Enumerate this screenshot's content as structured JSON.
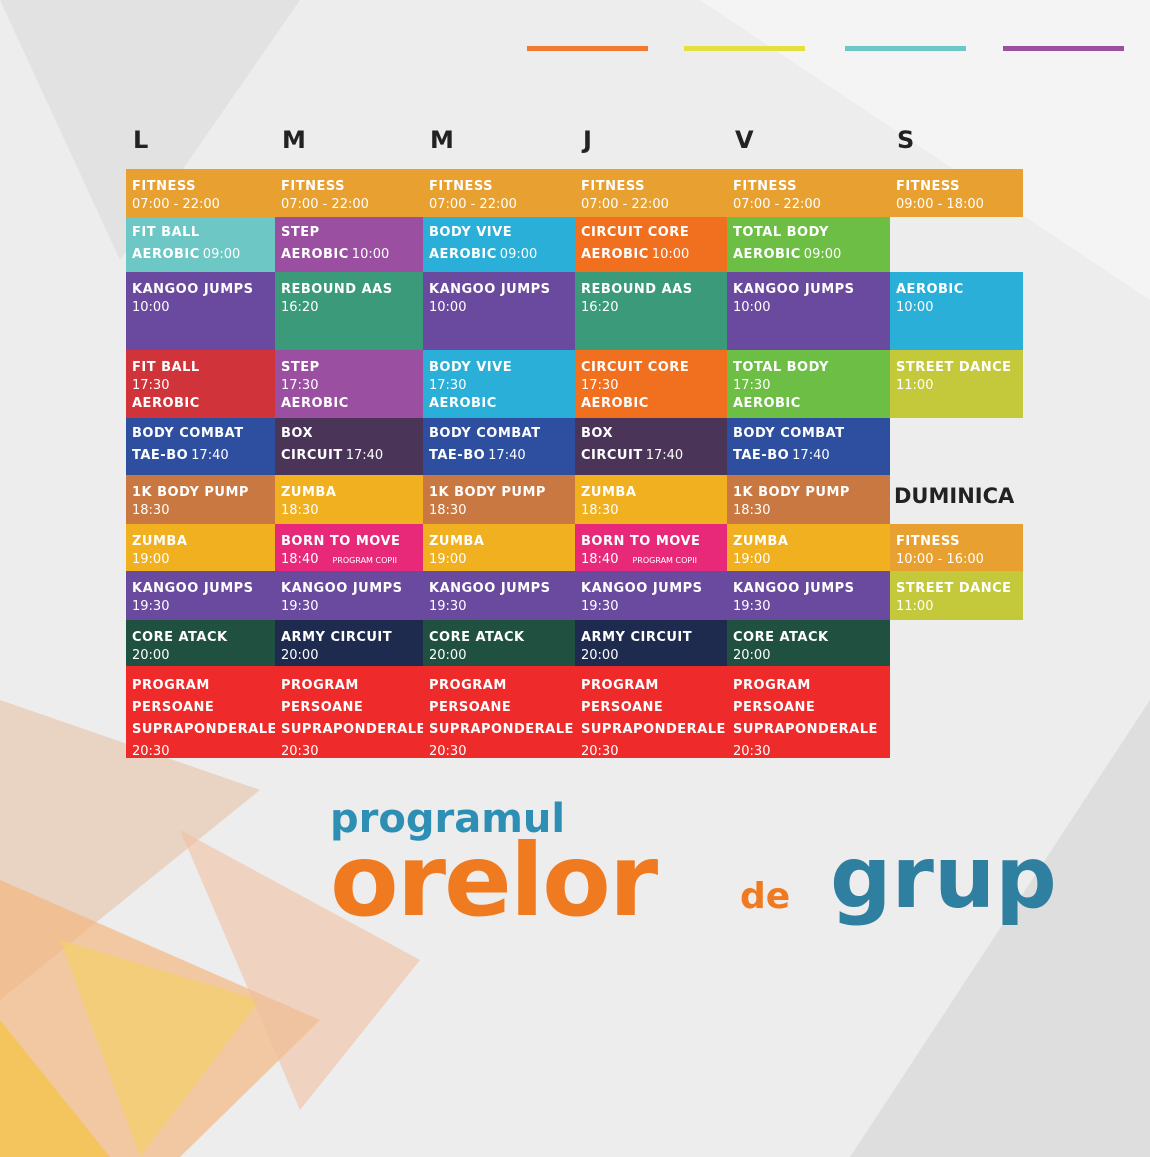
{
  "color_bars": [
    "#f07a30",
    "#e3e040",
    "#6cc7c5",
    "#9b4fa0"
  ],
  "days": [
    "L",
    "M",
    "M",
    "J",
    "V",
    "S"
  ],
  "sunday_label": "DUMINICA",
  "schedule": {
    "rows": [
      [
        {
          "color": "#e8a030",
          "lines": [
            {
              "b": "FITNESS"
            },
            {
              "n": "07:00 - 22:00"
            }
          ]
        },
        {
          "color": "#e8a030",
          "lines": [
            {
              "b": "FITNESS"
            },
            {
              "n": "07:00 - 22:00"
            }
          ]
        },
        {
          "color": "#e8a030",
          "lines": [
            {
              "b": "FITNESS"
            },
            {
              "n": "07:00 - 22:00"
            }
          ]
        },
        {
          "color": "#e8a030",
          "lines": [
            {
              "b": "FITNESS"
            },
            {
              "n": "07:00 - 22:00"
            }
          ]
        },
        {
          "color": "#e8a030",
          "lines": [
            {
              "b": "FITNESS"
            },
            {
              "n": "07:00 - 22:00"
            }
          ]
        },
        {
          "color": "#e8a030",
          "lines": [
            {
              "b": "FITNESS"
            },
            {
              "n": "09:00 - 18:00"
            }
          ]
        }
      ],
      [
        {
          "color": "#6cc7c5",
          "lines": [
            {
              "b": "FIT BALL"
            },
            {
              "b": "AEROBIC",
              "n": "09:00"
            }
          ]
        },
        {
          "color": "#9b4fa0",
          "lines": [
            {
              "b": "STEP"
            },
            {
              "b": "AEROBIC",
              "n": "10:00"
            }
          ]
        },
        {
          "color": "#2ab0d8",
          "lines": [
            {
              "b": "BODY VIVE"
            },
            {
              "b": "AEROBIC",
              "n": "09:00"
            }
          ]
        },
        {
          "color": "#f07020",
          "lines": [
            {
              "b": "CIRCUIT CORE"
            },
            {
              "b": "AEROBIC",
              "n": "10:00"
            }
          ]
        },
        {
          "color": "#6cbf44",
          "lines": [
            {
              "b": "TOTAL BODY"
            },
            {
              "b": "AEROBIC",
              "n": "09:00"
            }
          ]
        },
        null
      ],
      [
        {
          "color": "#6a4a9e",
          "lines": [
            {
              "b": "KANGOO JUMPS"
            },
            {
              "n": "10:00"
            }
          ]
        },
        {
          "color": "#3a9a7a",
          "lines": [
            {
              "b": "REBOUND AAS"
            },
            {
              "n": "16:20"
            }
          ]
        },
        {
          "color": "#6a4a9e",
          "lines": [
            {
              "b": "KANGOO JUMPS"
            },
            {
              "n": "10:00"
            }
          ]
        },
        {
          "color": "#3a9a7a",
          "lines": [
            {
              "b": "REBOUND AAS"
            },
            {
              "n": "16:20"
            }
          ]
        },
        {
          "color": "#6a4a9e",
          "lines": [
            {
              "b": "KANGOO JUMPS"
            },
            {
              "n": "10:00"
            }
          ]
        },
        {
          "color": "#2ab0d8",
          "lines": [
            {
              "b": "AEROBIC"
            },
            {
              "n": "10:00"
            }
          ]
        }
      ],
      [
        {
          "color": "#d0343a",
          "lines": [
            {
              "b": "FIT BALL"
            },
            {
              "n": "17:30"
            },
            {
              "b": "AEROBIC"
            }
          ]
        },
        {
          "color": "#9b4fa0",
          "lines": [
            {
              "b": "STEP"
            },
            {
              "n": "17:30"
            },
            {
              "b": "AEROBIC"
            }
          ]
        },
        {
          "color": "#2ab0d8",
          "lines": [
            {
              "b": "BODY VIVE"
            },
            {
              "n": "17:30"
            },
            {
              "b": "AEROBIC"
            }
          ]
        },
        {
          "color": "#f07020",
          "lines": [
            {
              "b": "CIRCUIT CORE"
            },
            {
              "n": "17:30"
            },
            {
              "b": "AEROBIC"
            }
          ]
        },
        {
          "color": "#6cbf44",
          "lines": [
            {
              "b": "TOTAL BODY"
            },
            {
              "n": "17:30"
            },
            {
              "b": "AEROBIC"
            }
          ]
        },
        {
          "color": "#c3c93a",
          "lines": [
            {
              "b": "STREET DANCE"
            },
            {
              "n": "11:00"
            }
          ]
        }
      ],
      [
        {
          "color": "#2e4fa0",
          "lines": [
            {
              "b": "BODY COMBAT"
            },
            {
              "b": "TAE-BO",
              "n": "17:40"
            }
          ]
        },
        {
          "color": "#4a3558",
          "lines": [
            {
              "b": "BOX"
            },
            {
              "b": "CIRCUIT",
              "n": "17:40"
            }
          ]
        },
        {
          "color": "#2e4fa0",
          "lines": [
            {
              "b": "BODY COMBAT"
            },
            {
              "b": "TAE-BO",
              "n": "17:40"
            }
          ]
        },
        {
          "color": "#4a3558",
          "lines": [
            {
              "b": "BOX"
            },
            {
              "b": "CIRCUIT",
              "n": "17:40"
            }
          ]
        },
        {
          "color": "#2e4fa0",
          "lines": [
            {
              "b": "BODY COMBAT"
            },
            {
              "b": "TAE-BO",
              "n": "17:40"
            }
          ]
        },
        null
      ],
      [
        {
          "color": "#c87840",
          "lines": [
            {
              "b": "1K BODY PUMP"
            },
            {
              "n": "18:30"
            }
          ]
        },
        {
          "color": "#f0b020",
          "lines": [
            {
              "b": "ZUMBA"
            },
            {
              "n": "18:30"
            }
          ]
        },
        {
          "color": "#c87840",
          "lines": [
            {
              "b": "1K BODY PUMP"
            },
            {
              "n": "18:30"
            }
          ]
        },
        {
          "color": "#f0b020",
          "lines": [
            {
              "b": "ZUMBA"
            },
            {
              "n": "18:30"
            }
          ]
        },
        {
          "color": "#c87840",
          "lines": [
            {
              "b": "1K BODY PUMP"
            },
            {
              "n": "18:30"
            }
          ]
        },
        null
      ],
      [
        {
          "color": "#f0b020",
          "lines": [
            {
              "b": "ZUMBA"
            },
            {
              "n": "19:00"
            }
          ]
        },
        {
          "color": "#e8297a",
          "lines": [
            {
              "b": "BORN TO MOVE"
            },
            {
              "n": "18:40",
              "s": "PROGRAM COPII"
            }
          ]
        },
        {
          "color": "#f0b020",
          "lines": [
            {
              "b": "ZUMBA"
            },
            {
              "n": "19:00"
            }
          ]
        },
        {
          "color": "#e8297a",
          "lines": [
            {
              "b": "BORN TO MOVE"
            },
            {
              "n": "18:40",
              "s": "PROGRAM COPII"
            }
          ]
        },
        {
          "color": "#f0b020",
          "lines": [
            {
              "b": "ZUMBA"
            },
            {
              "n": "19:00"
            }
          ]
        },
        {
          "color": "#e8a030",
          "lines": [
            {
              "b": "FITNESS"
            },
            {
              "n": "10:00 - 16:00"
            }
          ]
        }
      ],
      [
        {
          "color": "#6a4a9e",
          "lines": [
            {
              "b": "KANGOO JUMPS"
            },
            {
              "n": "19:30"
            }
          ]
        },
        {
          "color": "#6a4a9e",
          "lines": [
            {
              "b": "KANGOO JUMPS"
            },
            {
              "n": "19:30"
            }
          ]
        },
        {
          "color": "#6a4a9e",
          "lines": [
            {
              "b": "KANGOO JUMPS"
            },
            {
              "n": "19:30"
            }
          ]
        },
        {
          "color": "#6a4a9e",
          "lines": [
            {
              "b": "KANGOO JUMPS"
            },
            {
              "n": "19:30"
            }
          ]
        },
        {
          "color": "#6a4a9e",
          "lines": [
            {
              "b": "KANGOO JUMPS"
            },
            {
              "n": "19:30"
            }
          ]
        },
        {
          "color": "#c3c93a",
          "lines": [
            {
              "b": "STREET DANCE"
            },
            {
              "n": "11:00"
            }
          ]
        }
      ],
      [
        {
          "color": "#1f5040",
          "lines": [
            {
              "b": "CORE ATACK"
            },
            {
              "n": "20:00"
            }
          ]
        },
        {
          "color": "#1e2a4e",
          "lines": [
            {
              "b": "ARMY CIRCUIT"
            },
            {
              "n": "20:00"
            }
          ]
        },
        {
          "color": "#1f5040",
          "lines": [
            {
              "b": "CORE ATACK"
            },
            {
              "n": "20:00"
            }
          ]
        },
        {
          "color": "#1e2a4e",
          "lines": [
            {
              "b": "ARMY CIRCUIT"
            },
            {
              "n": "20:00"
            }
          ]
        },
        {
          "color": "#1f5040",
          "lines": [
            {
              "b": "CORE ATACK"
            },
            {
              "n": "20:00"
            }
          ]
        },
        null
      ],
      [
        {
          "color": "#ee2a2a",
          "lines": [
            {
              "b": "PROGRAM"
            },
            {
              "b": "PERSOANE"
            },
            {
              "b": "SUPRAPONDERALE"
            },
            {
              "n": "20:30"
            }
          ]
        },
        {
          "color": "#ee2a2a",
          "lines": [
            {
              "b": "PROGRAM"
            },
            {
              "b": "PERSOANE"
            },
            {
              "b": "SUPRAPONDERALE"
            },
            {
              "n": "20:30"
            }
          ]
        },
        {
          "color": "#ee2a2a",
          "lines": [
            {
              "b": "PROGRAM"
            },
            {
              "b": "PERSOANE"
            },
            {
              "b": "SUPRAPONDERALE"
            },
            {
              "n": "20:30"
            }
          ]
        },
        {
          "color": "#ee2a2a",
          "lines": [
            {
              "b": "PROGRAM"
            },
            {
              "b": "PERSOANE"
            },
            {
              "b": "SUPRAPONDERALE"
            },
            {
              "n": "20:30"
            }
          ]
        },
        {
          "color": "#ee2a2a",
          "lines": [
            {
              "b": "PROGRAM"
            },
            {
              "b": "PERSOANE"
            },
            {
              "b": "SUPRAPONDERALE"
            },
            {
              "n": "20:30"
            }
          ]
        },
        null
      ]
    ]
  },
  "title": {
    "top": "programul",
    "main": "orelor",
    "small": "de",
    "end": "grup"
  }
}
